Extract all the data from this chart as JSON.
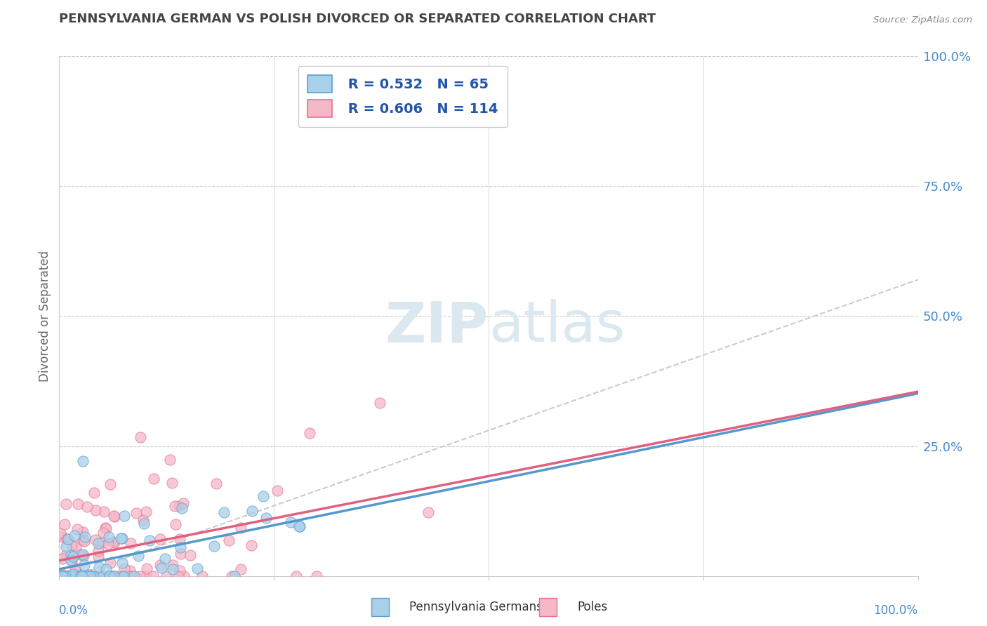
{
  "title": "PENNSYLVANIA GERMAN VS POLISH DIVORCED OR SEPARATED CORRELATION CHART",
  "source_text": "Source: ZipAtlas.com",
  "ylabel": "Divorced or Separated",
  "legend_label_1": "Pennsylvania Germans",
  "legend_label_2": "Poles",
  "r1": 0.532,
  "n1": 65,
  "r2": 0.606,
  "n2": 114,
  "color_blue": "#a8d0e8",
  "color_pink": "#f4b8c8",
  "color_blue_edge": "#5a9fd4",
  "color_pink_edge": "#e87090",
  "color_blue_line": "#5599cc",
  "color_pink_line": "#e06080",
  "color_dashed_line": "#cccccc",
  "background_color": "#ffffff",
  "title_color": "#444444",
  "source_color": "#888888",
  "axis_label_color": "#4488cc",
  "legend_text_color": "#2255aa",
  "watermark_color": "#dce8f0",
  "grid_color": "#cccccc",
  "ylabel_color": "#666666"
}
